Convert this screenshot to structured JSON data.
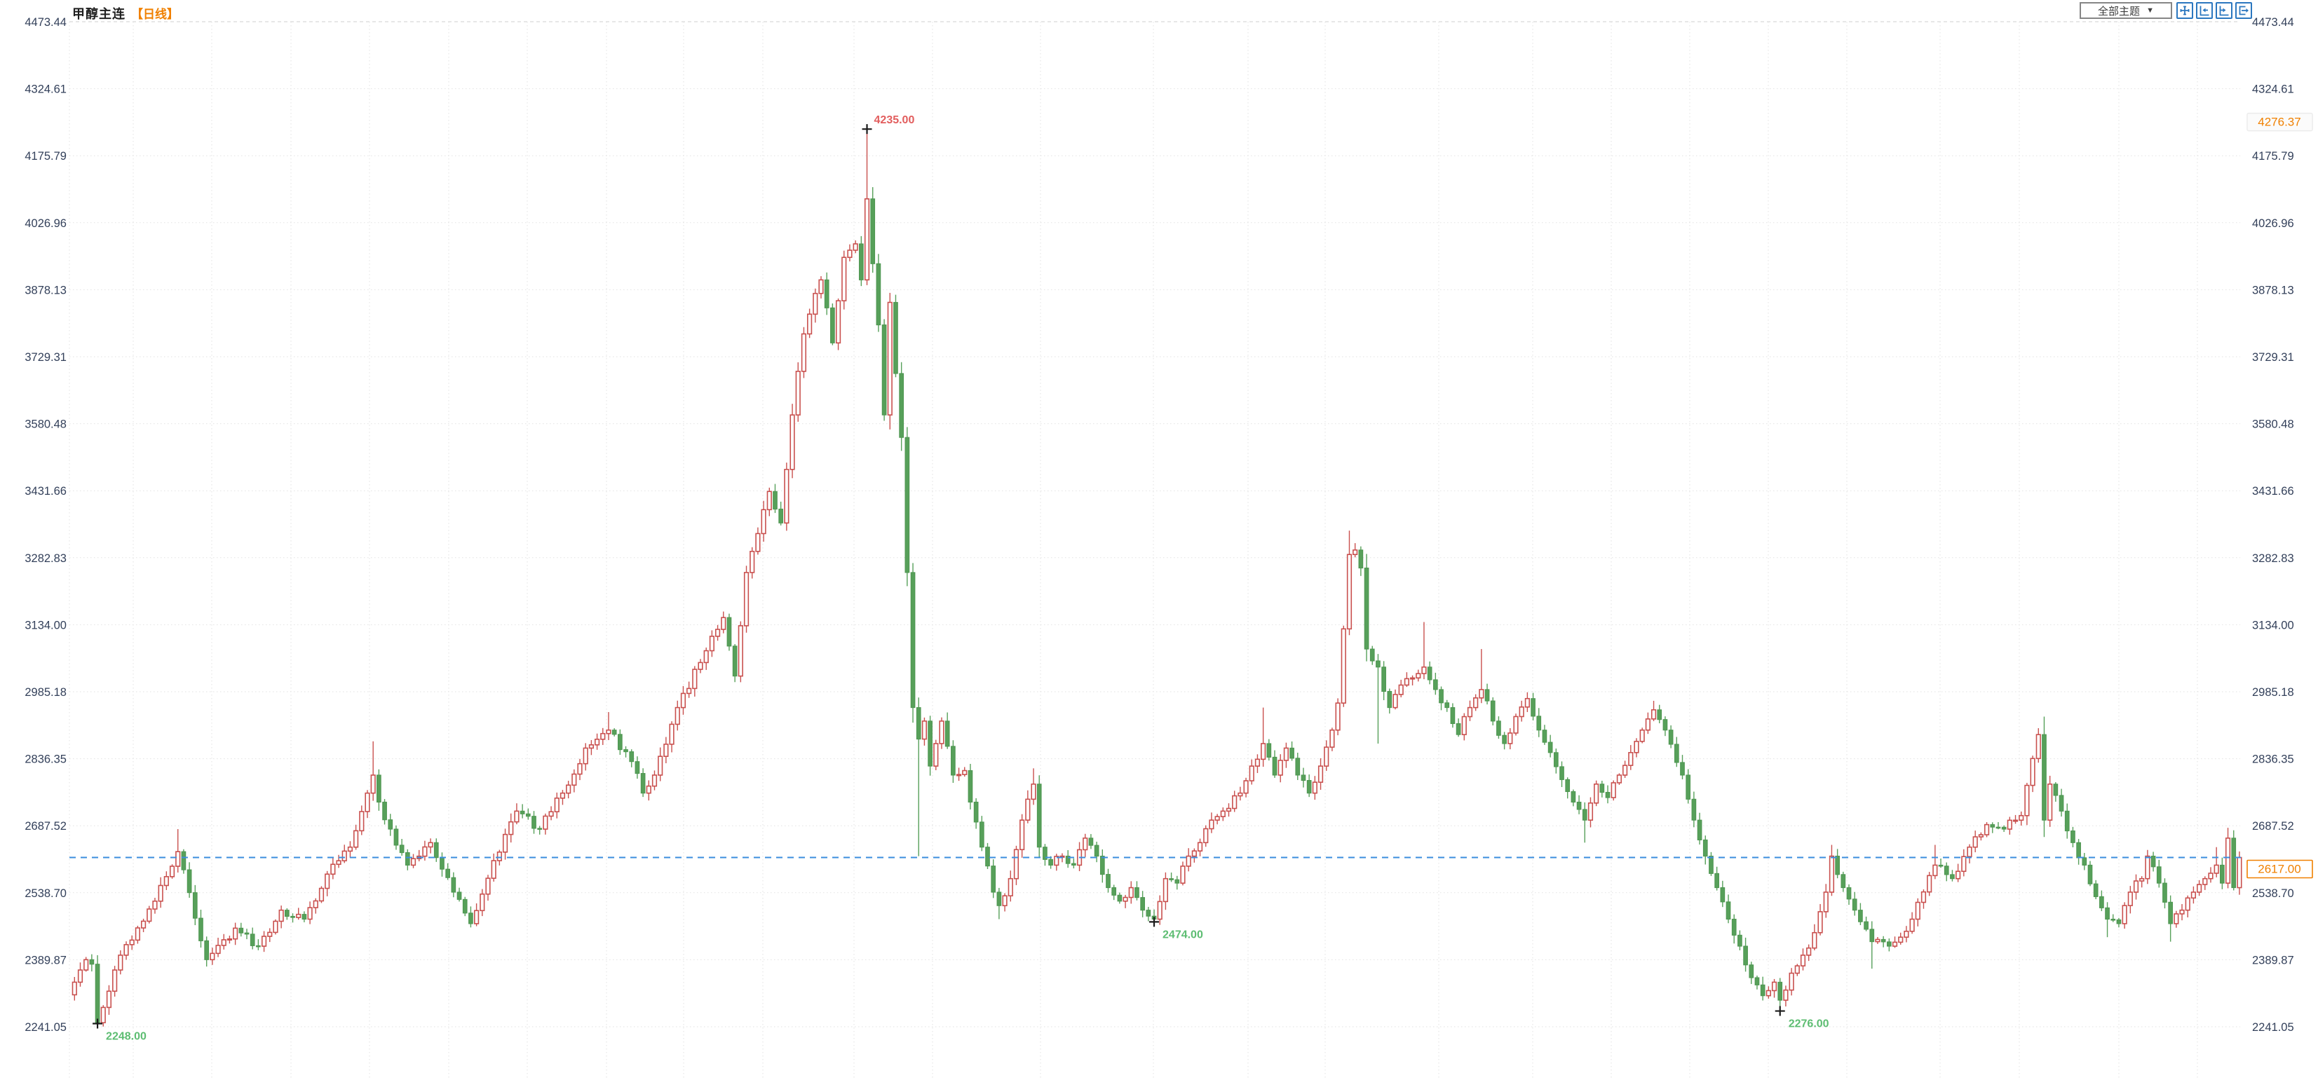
{
  "header": {
    "title": "甲醇主连",
    "period_label": "【日线】",
    "theme_dropdown": {
      "label": "全部主题",
      "arrow": "▼"
    },
    "toolbar_icons": [
      "crosshair-icon",
      "zoom-out-horizontal-icon",
      "zoom-in-horizontal-icon",
      "go-to-latest-icon"
    ]
  },
  "colors": {
    "up_candle": "#c9504e",
    "down_candle": "#57a05a",
    "down_candle_stroke": "#4f9752",
    "dashed_last_price_line": "#3b8ede",
    "accent_orange": "#f08000",
    "high_annotation": "#e25d5d",
    "low_annotation": "#5dbd72",
    "axis_text": "#33405a",
    "toolbar_icon_blue": "#2b77bf",
    "marker_black": "#1a1a1a",
    "grid_line": "#e2e2e2",
    "grid_line_top": "#cfcfcf",
    "reference_box_border": "#ececec",
    "reference_box_fill": "#fbfbfb"
  },
  "chart_data": {
    "type": "candlestick",
    "instrument": "甲醇主连",
    "period": "日线",
    "grid": true,
    "y_axis_ticks": [
      "4473.44",
      "4324.61",
      "4175.79",
      "4026.96",
      "3878.13",
      "3729.31",
      "3580.48",
      "3431.66",
      "3282.83",
      "3134.00",
      "2985.18",
      "2836.35",
      "2687.52",
      "2538.70",
      "2389.87",
      "2241.05"
    ],
    "ylim": [
      2241.05,
      4473.44
    ],
    "candle_count": 378,
    "last_price": {
      "value": 2617.0,
      "label": "2617.00"
    },
    "reference_price": {
      "value": 4276.37,
      "label": "4276.37"
    },
    "close_waypoints": [
      [
        0,
        2340
      ],
      [
        2,
        2390
      ],
      [
        3,
        2380
      ],
      [
        4,
        2250
      ],
      [
        6,
        2320
      ],
      [
        8,
        2400
      ],
      [
        14,
        2520
      ],
      [
        18,
        2630
      ],
      [
        23,
        2390
      ],
      [
        28,
        2460
      ],
      [
        32,
        2420
      ],
      [
        36,
        2500
      ],
      [
        40,
        2480
      ],
      [
        44,
        2580
      ],
      [
        48,
        2640
      ],
      [
        51,
        2760
      ],
      [
        52,
        2800
      ],
      [
        53,
        2740
      ],
      [
        55,
        2680
      ],
      [
        58,
        2600
      ],
      [
        62,
        2650
      ],
      [
        66,
        2540
      ],
      [
        69,
        2470
      ],
      [
        73,
        2610
      ],
      [
        77,
        2720
      ],
      [
        81,
        2680
      ],
      [
        85,
        2760
      ],
      [
        89,
        2860
      ],
      [
        93,
        2900
      ],
      [
        97,
        2830
      ],
      [
        99,
        2760
      ],
      [
        101,
        2800
      ],
      [
        105,
        2950
      ],
      [
        109,
        3050
      ],
      [
        113,
        3150
      ],
      [
        115,
        3020
      ],
      [
        117,
        3250
      ],
      [
        121,
        3430
      ],
      [
        123,
        3360
      ],
      [
        125,
        3600
      ],
      [
        127,
        3780
      ],
      [
        130,
        3900
      ],
      [
        132,
        3760
      ],
      [
        134,
        3950
      ],
      [
        136,
        3980
      ],
      [
        137,
        3900
      ],
      [
        138,
        4080
      ],
      [
        140,
        3800
      ],
      [
        141,
        3600
      ],
      [
        142,
        3850
      ],
      [
        144,
        3550
      ],
      [
        145,
        3250
      ],
      [
        146,
        2950
      ],
      [
        147,
        2880
      ],
      [
        148,
        2920
      ],
      [
        149,
        2820
      ],
      [
        150,
        2870
      ],
      [
        151,
        2920
      ],
      [
        153,
        2800
      ],
      [
        155,
        2810
      ],
      [
        156,
        2740
      ],
      [
        158,
        2640
      ],
      [
        160,
        2540
      ],
      [
        161,
        2510
      ],
      [
        163,
        2570
      ],
      [
        165,
        2700
      ],
      [
        167,
        2780
      ],
      [
        168,
        2640
      ],
      [
        170,
        2600
      ],
      [
        172,
        2620
      ],
      [
        174,
        2600
      ],
      [
        176,
        2660
      ],
      [
        178,
        2620
      ],
      [
        180,
        2550
      ],
      [
        182,
        2520
      ],
      [
        184,
        2550
      ],
      [
        186,
        2500
      ],
      [
        188,
        2480
      ],
      [
        190,
        2570
      ],
      [
        192,
        2560
      ],
      [
        194,
        2620
      ],
      [
        196,
        2650
      ],
      [
        198,
        2700
      ],
      [
        200,
        2720
      ],
      [
        203,
        2760
      ],
      [
        205,
        2820
      ],
      [
        207,
        2870
      ],
      [
        209,
        2800
      ],
      [
        211,
        2860
      ],
      [
        213,
        2800
      ],
      [
        215,
        2760
      ],
      [
        217,
        2820
      ],
      [
        219,
        2900
      ],
      [
        220,
        2960
      ],
      [
        222,
        3290
      ],
      [
        223,
        3300
      ],
      [
        224,
        3260
      ],
      [
        225,
        3080
      ],
      [
        227,
        3040
      ],
      [
        229,
        2950
      ],
      [
        231,
        3000
      ],
      [
        235,
        3040
      ],
      [
        237,
        2990
      ],
      [
        239,
        2950
      ],
      [
        241,
        2890
      ],
      [
        243,
        2950
      ],
      [
        245,
        2990
      ],
      [
        247,
        2920
      ],
      [
        249,
        2870
      ],
      [
        251,
        2930
      ],
      [
        253,
        2970
      ],
      [
        255,
        2900
      ],
      [
        257,
        2850
      ],
      [
        259,
        2790
      ],
      [
        261,
        2740
      ],
      [
        263,
        2700
      ],
      [
        265,
        2780
      ],
      [
        267,
        2750
      ],
      [
        269,
        2800
      ],
      [
        271,
        2850
      ],
      [
        273,
        2900
      ],
      [
        275,
        2945
      ],
      [
        277,
        2900
      ],
      [
        280,
        2800
      ],
      [
        282,
        2700
      ],
      [
        284,
        2620
      ],
      [
        286,
        2550
      ],
      [
        288,
        2480
      ],
      [
        290,
        2420
      ],
      [
        292,
        2350
      ],
      [
        294,
        2310
      ],
      [
        296,
        2340
      ],
      [
        297,
        2300
      ],
      [
        299,
        2360
      ],
      [
        301,
        2400
      ],
      [
        303,
        2450
      ],
      [
        305,
        2540
      ],
      [
        306,
        2620
      ],
      [
        308,
        2550
      ],
      [
        310,
        2500
      ],
      [
        313,
        2430
      ],
      [
        316,
        2420
      ],
      [
        318,
        2440
      ],
      [
        320,
        2480
      ],
      [
        324,
        2600
      ],
      [
        327,
        2570
      ],
      [
        330,
        2640
      ],
      [
        333,
        2690
      ],
      [
        336,
        2680
      ],
      [
        339,
        2710
      ],
      [
        342,
        2890
      ],
      [
        343,
        2700
      ],
      [
        344,
        2780
      ],
      [
        346,
        2720
      ],
      [
        348,
        2650
      ],
      [
        350,
        2600
      ],
      [
        352,
        2530
      ],
      [
        354,
        2480
      ],
      [
        356,
        2470
      ],
      [
        358,
        2540
      ],
      [
        360,
        2570
      ],
      [
        361,
        2620
      ],
      [
        363,
        2560
      ],
      [
        365,
        2470
      ],
      [
        367,
        2500
      ],
      [
        369,
        2540
      ],
      [
        371,
        2570
      ],
      [
        373,
        2600
      ],
      [
        374,
        2560
      ],
      [
        375,
        2660
      ],
      [
        376,
        2550
      ],
      [
        377,
        2617
      ]
    ],
    "wick_overrides": [
      {
        "index": 4,
        "low": 2248
      },
      {
        "index": 18,
        "high": 2680
      },
      {
        "index": 52,
        "high": 2875
      },
      {
        "index": 93,
        "high": 2940
      },
      {
        "index": 138,
        "high": 4235
      },
      {
        "index": 147,
        "low": 2620
      },
      {
        "index": 161,
        "low": 2480
      },
      {
        "index": 167,
        "high": 2815
      },
      {
        "index": 188,
        "low": 2474
      },
      {
        "index": 207,
        "high": 2950
      },
      {
        "index": 222,
        "high": 3343
      },
      {
        "index": 227,
        "low": 2870
      },
      {
        "index": 235,
        "high": 3140
      },
      {
        "index": 245,
        "high": 3080
      },
      {
        "index": 263,
        "low": 2650
      },
      {
        "index": 275,
        "high": 2965
      },
      {
        "index": 297,
        "low": 2276
      },
      {
        "index": 306,
        "high": 2645
      },
      {
        "index": 313,
        "low": 2370
      },
      {
        "index": 324,
        "high": 2645
      },
      {
        "index": 343,
        "high": 2930
      },
      {
        "index": 354,
        "low": 2440
      },
      {
        "index": 365,
        "low": 2430
      },
      {
        "index": 373,
        "high": 2640
      }
    ],
    "annotations": [
      {
        "index": 4,
        "price": 2248,
        "label": "2248.00",
        "kind": "low"
      },
      {
        "index": 138,
        "price": 4235,
        "label": "4235.00",
        "kind": "high"
      },
      {
        "index": 188,
        "price": 2474,
        "label": "2474.00",
        "kind": "low"
      },
      {
        "index": 297,
        "price": 2276,
        "label": "2276.00",
        "kind": "low"
      }
    ],
    "x_gridlines": [
      99,
      190,
      302,
      415,
      527,
      640,
      752,
      865,
      975,
      1088,
      1218,
      1330,
      1484,
      1645,
      1780,
      1890,
      2052,
      2186,
      2298,
      2410,
      2522,
      2634,
      2767,
      2880,
      3022,
      3134
    ],
    "legend_position": "none",
    "x_axis_labels_visible": false
  }
}
